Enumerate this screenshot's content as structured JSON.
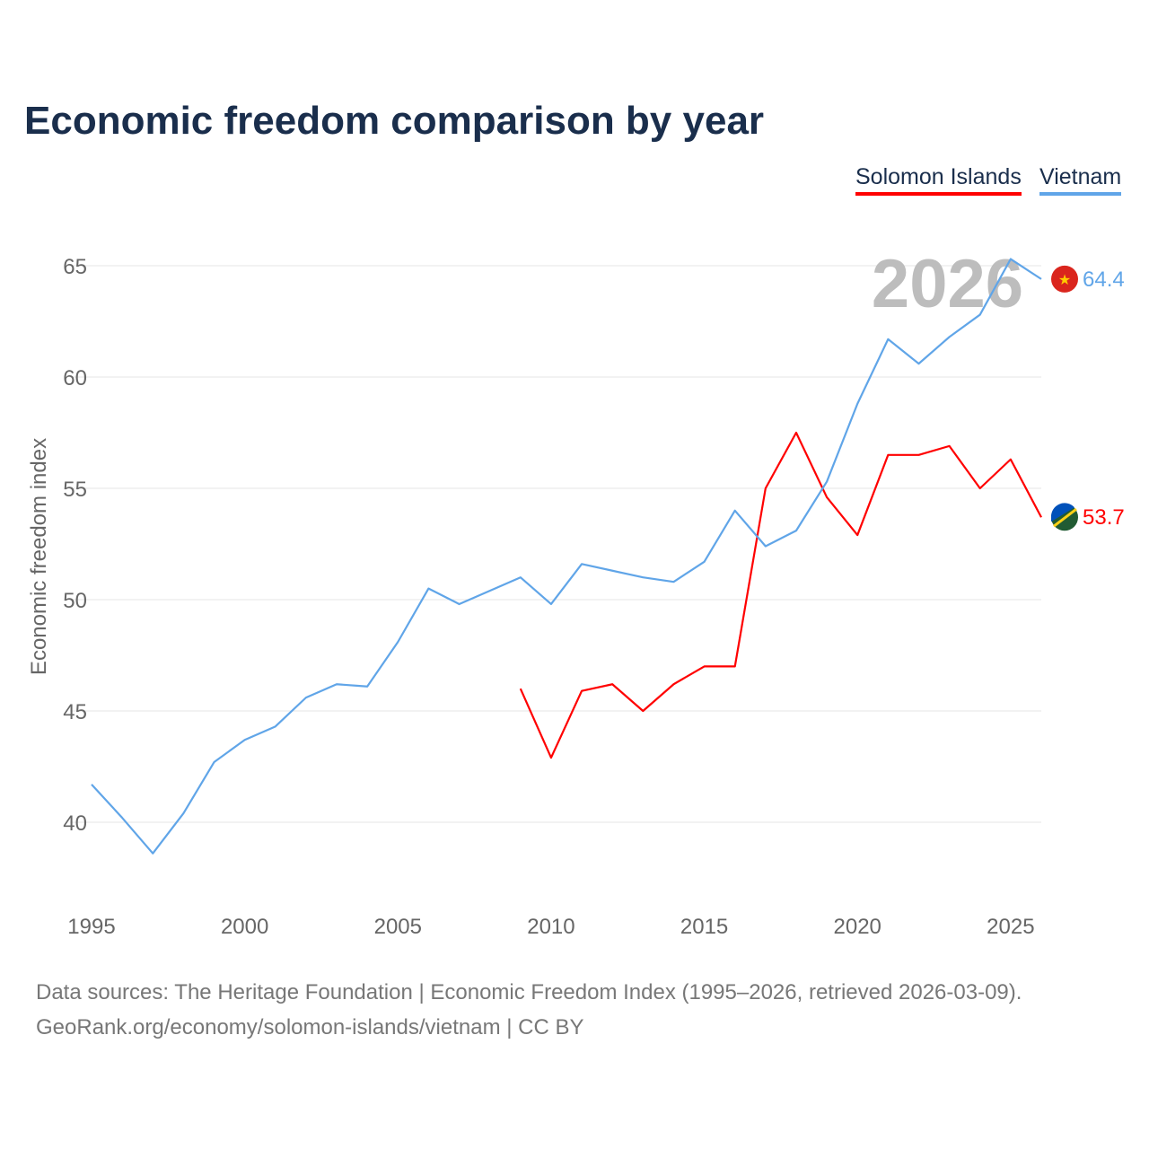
{
  "chart_data": {
    "type": "line",
    "title": "Economic freedom comparison by year",
    "xlabel": "",
    "ylabel": "Economic freedom index",
    "xlim": [
      1995,
      2026
    ],
    "ylim": [
      37,
      66.5
    ],
    "yticks": [
      40,
      45,
      50,
      55,
      60,
      65
    ],
    "xticks": [
      1995,
      2000,
      2005,
      2010,
      2015,
      2020,
      2025
    ],
    "grid": true,
    "legend_position": "top-right",
    "current_year_label": "2026",
    "series": [
      {
        "name": "Solomon Islands",
        "color": "#ff0000",
        "end_label": "53.7",
        "x": [
          2009,
          2010,
          2011,
          2012,
          2013,
          2014,
          2015,
          2016,
          2017,
          2018,
          2019,
          2020,
          2021,
          2022,
          2023,
          2024,
          2025,
          2026
        ],
        "values": [
          46.0,
          42.9,
          45.9,
          46.2,
          45.0,
          46.2,
          47.0,
          47.0,
          55.0,
          57.5,
          54.6,
          52.9,
          56.5,
          56.5,
          56.9,
          55.0,
          56.3,
          53.7
        ]
      },
      {
        "name": "Vietnam",
        "color": "#60a5e8",
        "end_label": "64.4",
        "x": [
          1995,
          1996,
          1997,
          1998,
          1999,
          2000,
          2001,
          2002,
          2003,
          2004,
          2005,
          2006,
          2007,
          2008,
          2009,
          2010,
          2011,
          2012,
          2013,
          2014,
          2015,
          2016,
          2017,
          2018,
          2019,
          2020,
          2021,
          2022,
          2023,
          2024,
          2025,
          2026
        ],
        "values": [
          41.7,
          40.2,
          38.6,
          40.4,
          42.7,
          43.7,
          44.3,
          45.6,
          46.2,
          46.1,
          48.1,
          50.5,
          49.8,
          50.4,
          51.0,
          49.8,
          51.6,
          51.3,
          51.0,
          50.8,
          51.7,
          54.0,
          52.4,
          53.1,
          55.3,
          58.8,
          61.7,
          60.6,
          61.8,
          62.8,
          65.3,
          64.4
        ]
      }
    ]
  },
  "footer": {
    "line1": "Data sources: The Heritage Foundation | Economic Freedom Index (1995–2026, retrieved 2026-03-09).",
    "line2": "GeoRank.org/economy/solomon-islands/vietnam | CC BY"
  }
}
